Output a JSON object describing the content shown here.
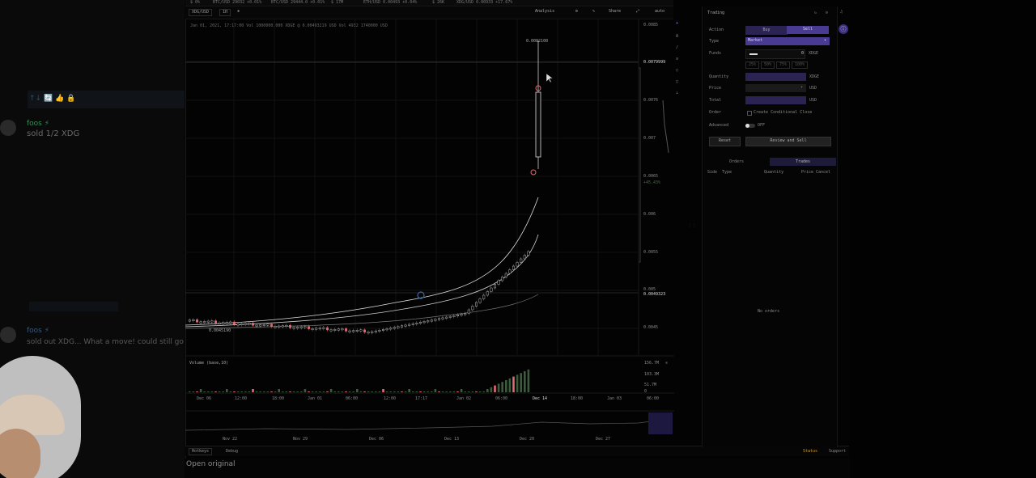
{
  "chat": {
    "reaction_row_1": "↑↓  🔄  👍  🔒",
    "msg1_user": "foos ⚡",
    "msg1_time": "",
    "msg1_text": "sold 1/2 XDG",
    "msg2_user": "foos ⚡",
    "msg2_text": "sold out XDG... What a move! could still go",
    "open_original": "Open original"
  },
  "ticker": {
    "items": [
      "$ 0%",
      "BTC/USD 29032 +0.01%",
      "BTC/USD 29444.0 +0.01%",
      "$ 17M",
      "ETH/USD 0.00493 +0.04%",
      "$ 26K",
      "XDG/USD 0.00933 +17.67%"
    ]
  },
  "toolbar": {
    "symbol": "XDG/USD",
    "interval": "1H",
    "analysis": "Analysis",
    "share": "Share",
    "auto": "auto"
  },
  "chart_info": {
    "ohlc_line": "Jan 01, 2021, 17:17:00  Vol  1000000.000 XDGE  @ 0.00493219 USD  Vol  4932 1740000 USD",
    "peak_label": "0.0082100",
    "low_label": "0.0045190"
  },
  "price_axis": [
    "0.0085",
    "0.0079999",
    "0.0076",
    "0.007",
    "0.0065",
    "0.006",
    "0.0055",
    "0.005",
    "0.0049323",
    "0.0045"
  ],
  "price_axis_extra": "+45.43%",
  "volume": {
    "label": "Volume (base,10)",
    "axis": [
      "156.7M",
      "103.3M",
      "51.7M",
      "0"
    ]
  },
  "time_axis": [
    "Dec 06",
    "12:00",
    "18:00",
    "Jan 01",
    "06:00",
    "12:00",
    "17:17",
    "Jan 02",
    "06:00",
    "Dec 14",
    "18:00",
    "Jan 03",
    "06:00"
  ],
  "overview_axis": [
    "Nov 22",
    "Nov 29",
    "Dec 06",
    "Dec 13",
    "Dec 20",
    "Dec 27"
  ],
  "footer": {
    "hotkeys": "Hotkeys",
    "debug": "Debug",
    "status": "Status",
    "support": "Support"
  },
  "trading": {
    "title": "Trading",
    "action_label": "Action",
    "buy": "Buy",
    "sell": "Sell",
    "type_label": "Type",
    "type_value": "Market",
    "funds_label": "Funds",
    "funds_value": "0",
    "funds_unit": "XDGE",
    "pct_buttons": [
      "25%",
      "50%",
      "75%",
      "100%"
    ],
    "quantity_label": "Quantity",
    "quantity_unit": "XDGE",
    "price_label": "Price",
    "price_unit": "USD",
    "total_label": "Total",
    "total_unit": "USD",
    "order_label": "Order",
    "conditional_close": "Create Conditional Close",
    "advanced_label": "Advanced",
    "advanced_state": "OFF",
    "reset": "Reset",
    "review": "Review and Sell",
    "tab_orders": "Orders",
    "tab_trades": "Trades",
    "cols": [
      "Side",
      "Type",
      "Quantity",
      "Price",
      "Cancel"
    ],
    "empty": "No orders"
  },
  "colors": {
    "up": "#d4d4d4",
    "down": "#e06a74",
    "accent": "#4a3b92"
  }
}
